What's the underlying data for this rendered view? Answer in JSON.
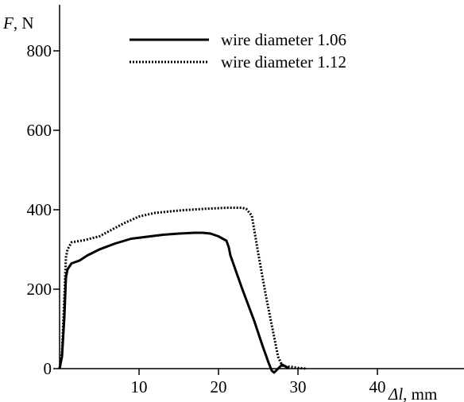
{
  "chart_data": {
    "type": "line",
    "title": "",
    "ylabel_var": "F",
    "ylabel_unit": ", N",
    "xlabel_var": "Δl",
    "xlabel_unit": ", mm",
    "xlim": [
      0,
      51
    ],
    "ylim": [
      0,
      900
    ],
    "xticks": [
      10,
      20,
      30,
      40
    ],
    "xtick_labels": [
      "10",
      "20",
      "30",
      "40"
    ],
    "yticks": [
      0,
      200,
      400,
      600,
      800
    ],
    "ytick_labels": [
      "0",
      "200",
      "400",
      "600",
      "800"
    ],
    "grid": false,
    "legend_position": "top",
    "series": [
      {
        "name": "wire diameter 1.06",
        "style": "solid",
        "color": "#000000",
        "x": [
          0,
          0.3,
          0.6,
          0.8,
          1.0,
          1.5,
          2.5,
          3.5,
          5,
          7,
          9,
          11,
          13,
          15,
          17,
          18,
          19,
          20,
          21,
          21.3,
          21.5,
          23,
          24.5,
          25.5,
          26.3,
          26.7,
          27,
          27.5,
          28,
          28.5,
          28.8
        ],
        "y": [
          0,
          30,
          130,
          230,
          250,
          265,
          272,
          285,
          300,
          315,
          327,
          332,
          337,
          340,
          342,
          342,
          340,
          333,
          322,
          305,
          285,
          200,
          120,
          60,
          15,
          -5,
          -10,
          0,
          10,
          5,
          0
        ]
      },
      {
        "name": "wire diameter 1.12",
        "style": "dotted",
        "color": "#000000",
        "x": [
          0,
          0.3,
          0.6,
          0.8,
          1.0,
          1.5,
          3,
          5,
          8,
          10,
          12,
          15,
          18,
          21,
          23,
          23.5,
          24.2,
          25,
          26,
          27,
          27.5,
          28,
          28.5,
          29,
          30,
          31
        ],
        "y": [
          0,
          40,
          180,
          280,
          300,
          318,
          323,
          333,
          365,
          383,
          392,
          398,
          402,
          405,
          405,
          402,
          385,
          290,
          180,
          80,
          30,
          8,
          5,
          5,
          2,
          0
        ]
      }
    ]
  }
}
